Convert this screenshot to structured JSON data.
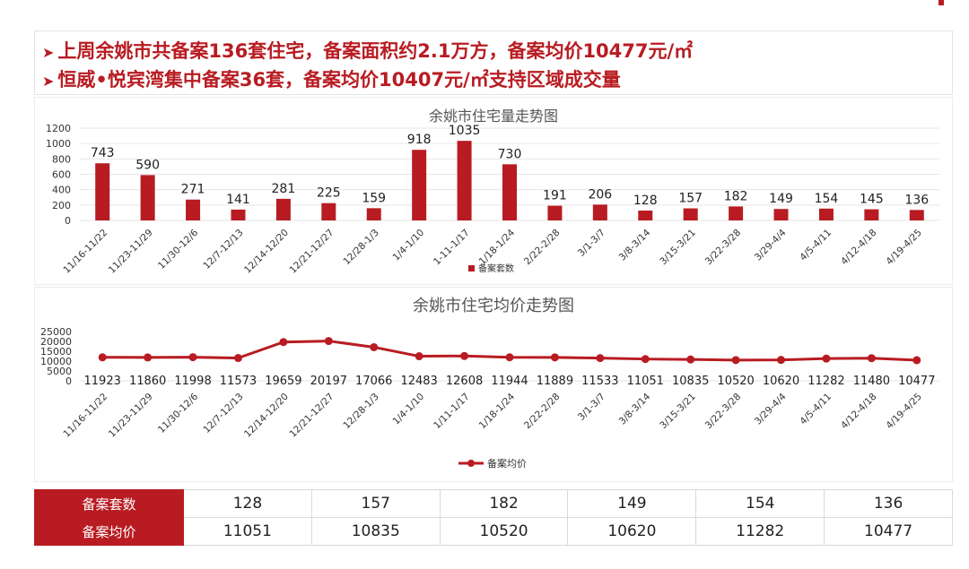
{
  "headline": {
    "line1": "上周余姚市共备案136套住宅，备案面积约2.1万方，备案均价10477元/㎡",
    "line2": "恒威•悦宾湾集中备案36套，备案均价10407元/㎡支持区域成交量"
  },
  "colors": {
    "accent": "#b81c22",
    "grid": "#e6e6e6",
    "text": "#333333"
  },
  "chart_data": [
    {
      "type": "bar",
      "title": "余姚市住宅量走势图",
      "categories": [
        "11/16-11/22",
        "11/23-11/29",
        "11/30-12/6",
        "12/7-12/13",
        "12/14-12/20",
        "12/21-12/27",
        "12/28-1/3",
        "1/4-1/10",
        "1-11-1/17",
        "1/18-1/24",
        "2/22-2/28",
        "3/1-3/7",
        "3/8-3/14",
        "3/15-3/21",
        "3/22-3/28",
        "3/29-4/4",
        "4/5-4/11",
        "4/12-4/18",
        "4/19-4/25"
      ],
      "series": [
        {
          "name": "备案套数",
          "values": [
            743,
            590,
            271,
            141,
            281,
            225,
            159,
            918,
            1035,
            730,
            191,
            206,
            128,
            157,
            182,
            149,
            154,
            145,
            136
          ]
        }
      ],
      "ylim": [
        0,
        1200
      ],
      "yticks": [
        "0",
        "200",
        "400",
        "600",
        "800",
        "1000",
        "1200"
      ],
      "grid": true,
      "legend_position": "bottom"
    },
    {
      "type": "line",
      "title": "余姚市住宅均价走势图",
      "categories": [
        "11/16-11/22",
        "11/23-11/29",
        "11/30-12/6",
        "12/7-12/13",
        "12/14-12/20",
        "12/21-12/27",
        "12/28-1/3",
        "1/4-1/10",
        "1/11-1/17",
        "1/18-1/24",
        "2/22-2/28",
        "3/1-3/7",
        "3/8-3/14",
        "3/15-3/21",
        "3/22-3/28",
        "3/29-4/4",
        "4/5-4/11",
        "4/12-4/18",
        "4/19-4/25"
      ],
      "series": [
        {
          "name": "备案均价",
          "values": [
            11923,
            11860,
            11998,
            11573,
            19659,
            20197,
            17066,
            12483,
            12608,
            11944,
            11889,
            11533,
            11051,
            10835,
            10520,
            10620,
            11282,
            11480,
            10477
          ]
        }
      ],
      "ylim": [
        0,
        25000
      ],
      "yticks": [
        "0",
        "5000",
        "10000",
        "15000",
        "20000",
        "25000"
      ],
      "grid": false,
      "legend_position": "bottom"
    }
  ],
  "summary_table": {
    "rows": [
      {
        "label": "备案套数",
        "values": [
          "128",
          "157",
          "182",
          "149",
          "154",
          "136"
        ]
      },
      {
        "label": "备案均价",
        "values": [
          "11051",
          "10835",
          "10520",
          "10620",
          "11282",
          "10477"
        ]
      }
    ]
  }
}
